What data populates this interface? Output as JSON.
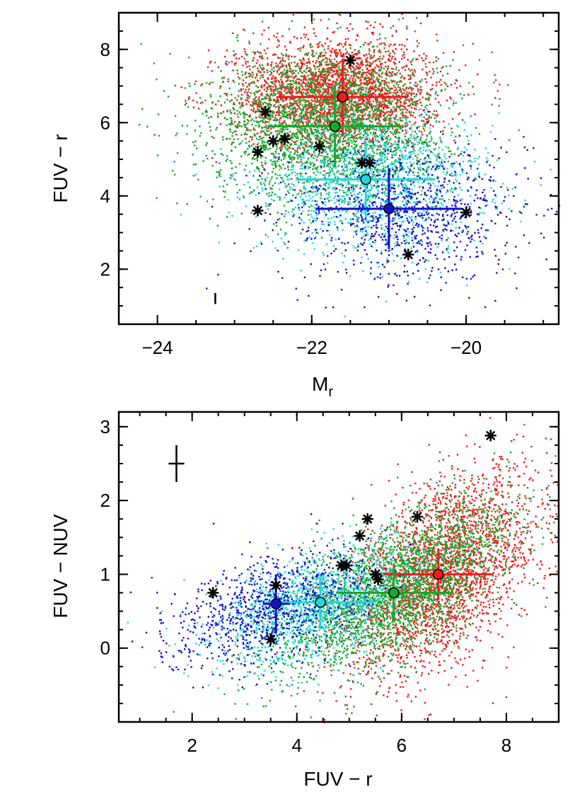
{
  "chart_data": [
    {
      "type": "scatter",
      "panel": "top",
      "xlabel": "M",
      "xlabel_subscript": "r",
      "ylabel": "FUV − r",
      "xlim": [
        -24.5,
        -18.8
      ],
      "ylim": [
        0.5,
        9.0
      ],
      "xticks": [
        -24,
        -22,
        -20
      ],
      "xtick_labels": [
        "−24",
        "−22",
        "−20"
      ],
      "yticks": [
        2,
        4,
        6,
        8
      ],
      "ytick_labels": [
        "2",
        "4",
        "6",
        "8"
      ],
      "series": [
        {
          "name": "red",
          "color": "#ee1c1c",
          "cloud": {
            "cx": -21.7,
            "cy": 6.8,
            "sx": 0.65,
            "sy": 0.75,
            "n": 2600
          }
        },
        {
          "name": "green",
          "color": "#1aa82a",
          "cloud": {
            "cx": -21.8,
            "cy": 5.9,
            "sx": 0.75,
            "sy": 1.05,
            "n": 2600
          }
        },
        {
          "name": "cyan",
          "color": "#22d6dc",
          "cloud": {
            "cx": -21.2,
            "cy": 4.4,
            "sx": 0.75,
            "sy": 0.95,
            "n": 1300
          }
        },
        {
          "name": "blue",
          "color": "#1212c8",
          "cloud": {
            "cx": -20.8,
            "cy": 3.5,
            "sx": 0.8,
            "sy": 0.95,
            "n": 900
          }
        }
      ],
      "means": [
        {
          "name": "red",
          "color": "#ee1c1c",
          "x": -21.6,
          "y": 6.7,
          "xerr": 0.85,
          "yerr": 1.05
        },
        {
          "name": "green",
          "color": "#1aa82a",
          "x": -21.7,
          "y": 5.9,
          "xerr": 0.85,
          "yerr": 1.1
        },
        {
          "name": "cyan",
          "color": "#22d6dc",
          "x": -21.3,
          "y": 4.45,
          "xerr": 0.9,
          "yerr": 1.05
        },
        {
          "name": "blue",
          "color": "#1212c8",
          "x": -21.0,
          "y": 3.65,
          "xerr": 0.95,
          "yerr": 1.1
        }
      ],
      "stars": [
        {
          "x": -21.5,
          "y": 7.7
        },
        {
          "x": -22.6,
          "y": 6.3
        },
        {
          "x": -22.7,
          "y": 5.2
        },
        {
          "x": -22.5,
          "y": 5.5
        },
        {
          "x": -22.35,
          "y": 5.55
        },
        {
          "x": -21.9,
          "y": 5.35
        },
        {
          "x": -21.35,
          "y": 4.9
        },
        {
          "x": -21.25,
          "y": 4.9
        },
        {
          "x": -22.7,
          "y": 3.6
        },
        {
          "x": -20.0,
          "y": 3.55
        },
        {
          "x": -20.75,
          "y": 2.4
        }
      ],
      "error_sample": {
        "x": -23.25,
        "y": 1.2,
        "xerr": 0.0,
        "yerr": 0.15
      }
    },
    {
      "type": "scatter",
      "panel": "bottom",
      "xlabel": "FUV − r",
      "ylabel": "FUV − NUV",
      "xlim": [
        0.6,
        9.0
      ],
      "ylim": [
        -1.0,
        3.2
      ],
      "xticks": [
        2,
        4,
        6,
        8
      ],
      "xtick_labels": [
        "2",
        "4",
        "6",
        "8"
      ],
      "yticks": [
        0,
        1,
        2,
        3
      ],
      "ytick_labels": [
        "0",
        "1",
        "2",
        "3"
      ],
      "series": [
        {
          "name": "red",
          "color": "#ee1c1c",
          "cloud": {
            "cx": 6.8,
            "cy": 1.05,
            "sx": 0.9,
            "sy": 0.6,
            "slope": 0.42,
            "n": 2600
          }
        },
        {
          "name": "green",
          "color": "#1aa82a",
          "cloud": {
            "cx": 5.9,
            "cy": 0.8,
            "sx": 1.15,
            "sy": 0.45,
            "slope": 0.35,
            "n": 2600
          }
        },
        {
          "name": "cyan",
          "color": "#22d6dc",
          "cloud": {
            "cx": 4.4,
            "cy": 0.6,
            "sx": 1.0,
            "sy": 0.35,
            "slope": 0.2,
            "n": 1300
          }
        },
        {
          "name": "blue",
          "color": "#1212c8",
          "cloud": {
            "cx": 3.5,
            "cy": 0.55,
            "sx": 0.95,
            "sy": 0.35,
            "slope": 0.18,
            "n": 900
          }
        }
      ],
      "means": [
        {
          "name": "red",
          "color": "#ee1c1c",
          "x": 6.7,
          "y": 1.0,
          "xerr": 1.05,
          "yerr": 0.35
        },
        {
          "name": "green",
          "color": "#1aa82a",
          "x": 5.85,
          "y": 0.75,
          "xerr": 1.1,
          "yerr": 0.4
        },
        {
          "name": "cyan",
          "color": "#22d6dc",
          "x": 4.45,
          "y": 0.62,
          "xerr": 1.05,
          "yerr": 0.35
        },
        {
          "name": "blue",
          "color": "#1212c8",
          "x": 3.6,
          "y": 0.6,
          "xerr": 0.25,
          "yerr": 0.4
        }
      ],
      "stars": [
        {
          "x": 7.7,
          "y": 2.88
        },
        {
          "x": 6.3,
          "y": 1.78
        },
        {
          "x": 5.35,
          "y": 1.75
        },
        {
          "x": 5.2,
          "y": 1.52
        },
        {
          "x": 4.85,
          "y": 1.12
        },
        {
          "x": 4.95,
          "y": 1.12
        },
        {
          "x": 5.5,
          "y": 1.0
        },
        {
          "x": 5.55,
          "y": 0.93
        },
        {
          "x": 3.6,
          "y": 0.85
        },
        {
          "x": 2.4,
          "y": 0.75
        },
        {
          "x": 3.5,
          "y": 0.12
        }
      ],
      "error_sample": {
        "x": 1.7,
        "y": 2.5,
        "xerr": 0.15,
        "yerr": 0.25
      }
    }
  ]
}
